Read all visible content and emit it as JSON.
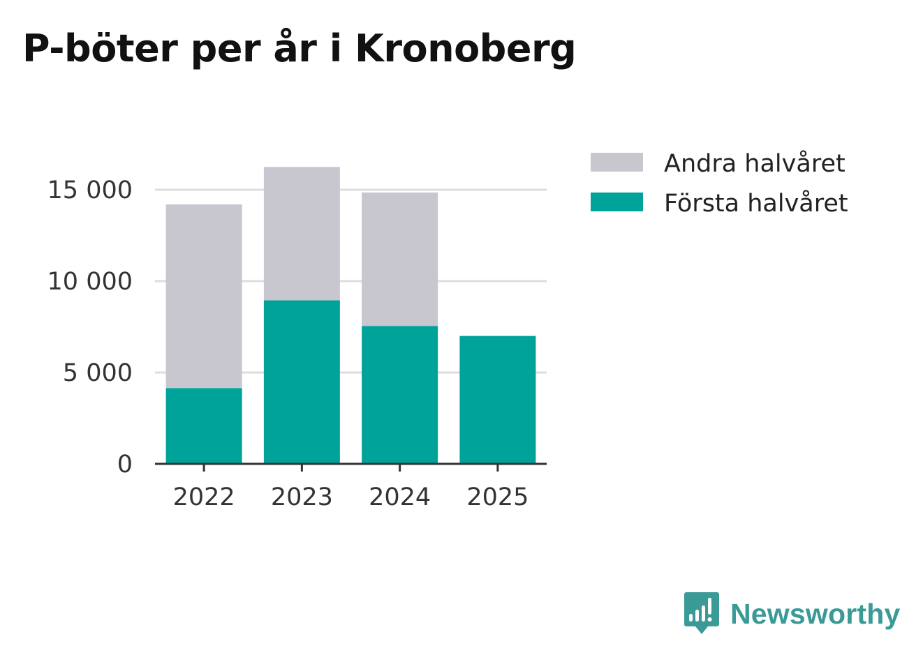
{
  "title": "P-böter per år i Kronoberg",
  "brand": {
    "name": "Newsworthy",
    "icon": "newsworthy-logo-icon",
    "color": "#3a9a96"
  },
  "chart_data": {
    "type": "bar",
    "stacked": true,
    "title": "P-böter per år i Kronoberg",
    "xlabel": "",
    "ylabel": "",
    "categories": [
      "2022",
      "2023",
      "2024",
      "2025"
    ],
    "series": [
      {
        "name": "Första halvåret",
        "color": "#00a399",
        "values": [
          4150,
          8950,
          7550,
          7000
        ]
      },
      {
        "name": "Andra halvåret",
        "color": "#c8c7d0",
        "values": [
          10050,
          7300,
          7300,
          0
        ]
      }
    ],
    "legend_order": [
      "Andra halvåret",
      "Första halvåret"
    ],
    "legend_position": "top-right",
    "ylim": [
      0,
      16300
    ],
    "yticks": [
      0,
      5000,
      10000,
      15000
    ],
    "ytick_labels": [
      "0",
      "5 000",
      "10 000",
      "15 000"
    ],
    "grid": true
  }
}
